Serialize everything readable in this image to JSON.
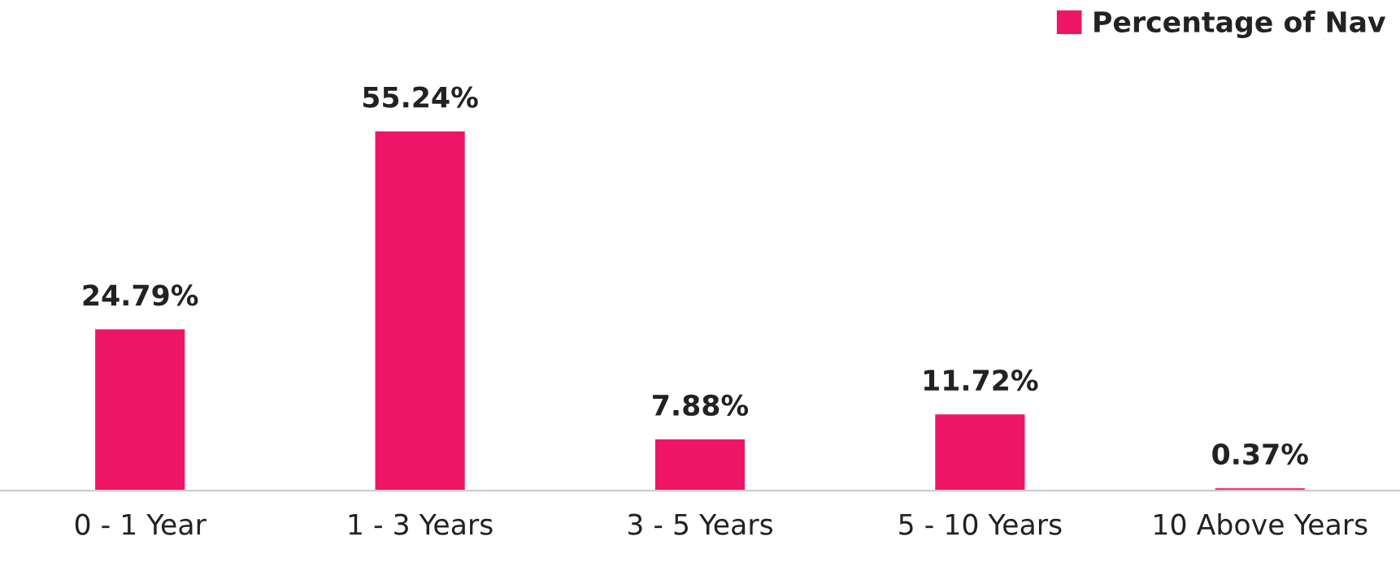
{
  "chart_data": {
    "type": "bar",
    "categories": [
      "0 - 1 Year",
      "1 - 3 Years",
      "3 - 5 Years",
      "5 - 10 Years",
      "10 Above Years"
    ],
    "series": [
      {
        "name": "Percentage of Nav",
        "color": "#ee1566",
        "values": [
          24.79,
          55.24,
          7.88,
          11.72,
          0.37
        ],
        "value_labels": [
          "24.79%",
          "55.24%",
          "7.88%",
          "11.72%",
          "0.37%"
        ]
      }
    ],
    "legend": "top right",
    "grid": false
  }
}
